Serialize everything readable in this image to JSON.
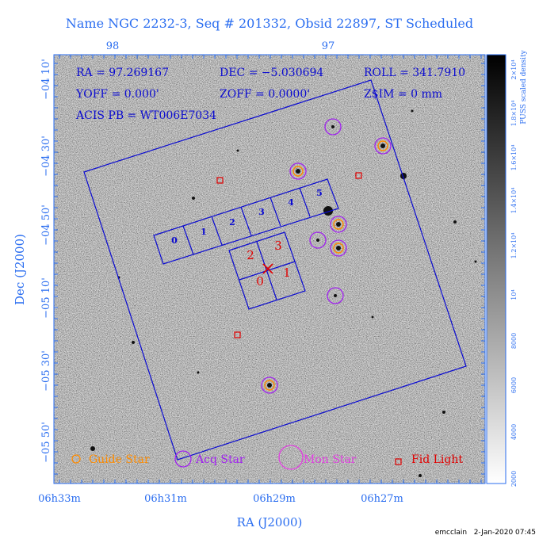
{
  "header": {
    "title": "Name NGC 2232-3, Seq # 201332, Obsid 22897, ST Scheduled"
  },
  "info": {
    "ra": "RA = 97.269167",
    "dec": "DEC = −5.030694",
    "roll": "ROLL = 341.7910",
    "yoff": "YOFF = 0.000'",
    "zoff": "ZOFF = 0.0000'",
    "zsim": "Z$IM = 0 mm",
    "acis_pb": "ACIS PB = WT006E7034"
  },
  "top_axis": {
    "ticks": [
      "98",
      "97"
    ]
  },
  "bottom_axis": {
    "ticks": [
      "06h33m",
      "06h31m",
      "06h29m",
      "06h27m"
    ],
    "title": "RA (J2000)"
  },
  "left_axis": {
    "ticks": [
      "−04 10'",
      "−04 30'",
      "−04 50'",
      "−05 10'",
      "−05 30'",
      "−05 50'"
    ],
    "title": "Dec (J2000)"
  },
  "colorbar": {
    "label": "PUSS scaled density",
    "ticks": [
      "2×10⁴",
      "1.8×10⁴",
      "1.6×10⁴",
      "1.4×10⁴",
      "1.2×10⁴",
      "10⁴",
      "8000",
      "6000",
      "4000",
      "2000"
    ]
  },
  "chips": {
    "acis_s": [
      "0",
      "1",
      "2",
      "3",
      "4",
      "5"
    ],
    "acis_i": [
      "2",
      "3",
      "0",
      "1"
    ]
  },
  "legend": {
    "guide": "Guide Star",
    "acq": "Acq Star",
    "mon": "Mon Star",
    "fid": "Fid Light"
  },
  "footer": {
    "stamp": "emcclain   2-Jan-2020 07:45"
  },
  "colors": {
    "frame_blue": "#2a6df0",
    "overlay_blue": "#0a0ad0",
    "guide_orange": "#ff8c00",
    "acq_purple": "#a020f0",
    "mon_magenta": "#e040e0",
    "fid_red": "#e00000"
  }
}
